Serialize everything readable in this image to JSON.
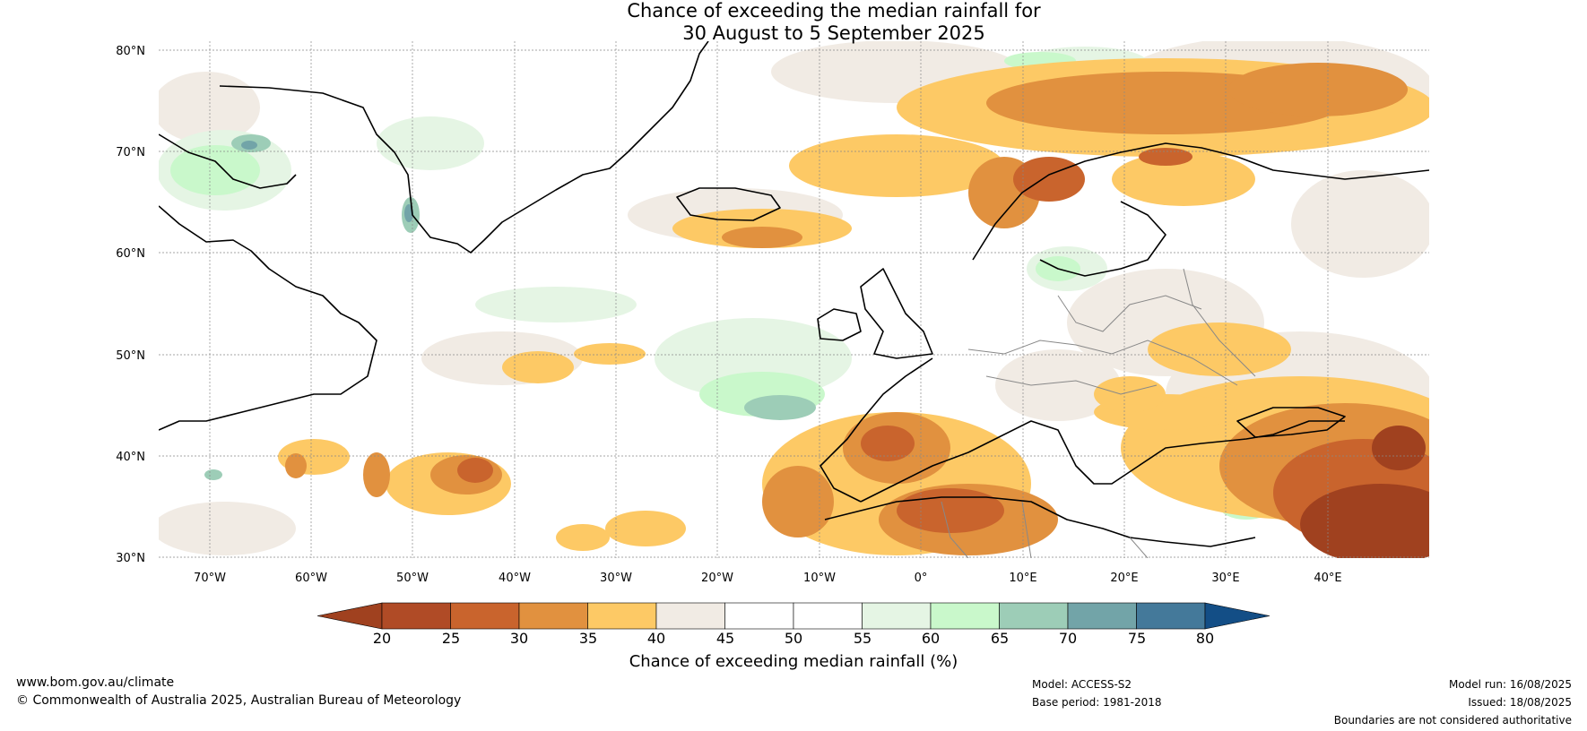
{
  "title": {
    "line1": "Chance of exceeding the median rainfall for",
    "line2": "30 August to 5 September 2025"
  },
  "map": {
    "latitude_labels": [
      "80°N",
      "70°N",
      "60°N",
      "50°N",
      "40°N",
      "30°N"
    ],
    "longitude_labels": [
      "70°W",
      "60°W",
      "50°W",
      "40°W",
      "30°W",
      "20°W",
      "10°W",
      "0°",
      "10°E",
      "20°E",
      "30°E",
      "40°E"
    ]
  },
  "colorbar": {
    "title": "Chance of exceeding median rainfall (%)",
    "tick_labels": [
      "20",
      "25",
      "30",
      "35",
      "40",
      "45",
      "50",
      "55",
      "60",
      "65",
      "70",
      "75",
      "80"
    ],
    "colors": [
      "#a0411f",
      "#b04b26",
      "#c9642d",
      "#e1913f",
      "#fdc965",
      "#f1ebe4",
      "#ffffff",
      "#ffffff",
      "#e5f5e4",
      "#c9f8cb",
      "#9dcdb7",
      "#72a4a8",
      "#44799a",
      "#134e86"
    ]
  },
  "footer": {
    "website": "www.bom.gov.au/climate",
    "copyright": "© Commonwealth of Australia 2025, Australian Bureau of Meteorology",
    "model": "Model: ACCESS-S2",
    "base_period": "Base period: 1981-2018",
    "model_run": "Model run: 16/08/2025",
    "issued": "Issued: 18/08/2025",
    "disclaimer": "Boundaries are not considered authoritative"
  }
}
